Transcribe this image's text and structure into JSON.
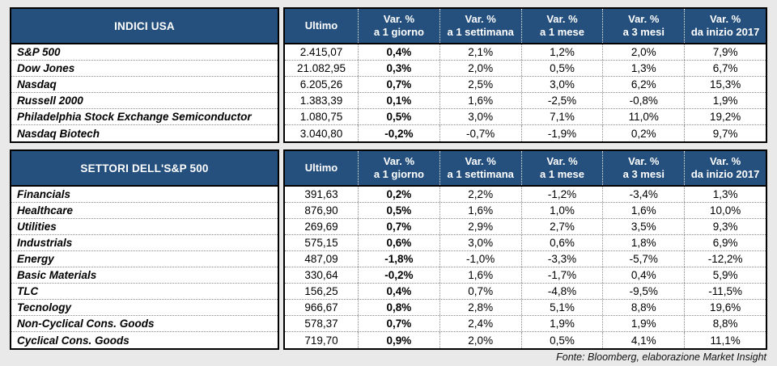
{
  "page": {
    "header_blue": "#25507E",
    "footer_note": "Fonte: Bloomberg, elaborazione Market Insight"
  },
  "columns": [
    {
      "line1": "Ultimo",
      "line2": ""
    },
    {
      "line1": "Var. %",
      "line2": "a 1 giorno"
    },
    {
      "line1": "Var. %",
      "line2": "a 1 settimana"
    },
    {
      "line1": "Var. %",
      "line2": "a 1 mese"
    },
    {
      "line1": "Var. %",
      "line2": "a 3 mesi"
    },
    {
      "line1": "Var. %",
      "line2": "da inizio 2017"
    }
  ],
  "sections": [
    {
      "title": "INDICI USA",
      "rows": [
        {
          "name": "S&P 500",
          "cells": [
            "2.415,07",
            "0,4%",
            "2,1%",
            "1,2%",
            "2,0%",
            "7,9%"
          ]
        },
        {
          "name": "Dow Jones",
          "cells": [
            "21.082,95",
            "0,3%",
            "2,0%",
            "0,5%",
            "1,3%",
            "6,7%"
          ]
        },
        {
          "name": "Nasdaq",
          "cells": [
            "6.205,26",
            "0,7%",
            "2,5%",
            "3,0%",
            "6,2%",
            "15,3%"
          ]
        },
        {
          "name": "Russell 2000",
          "cells": [
            "1.383,39",
            "0,1%",
            "1,6%",
            "-2,5%",
            "-0,8%",
            "1,9%"
          ]
        },
        {
          "name": "Philadelphia Stock Exchange Semiconductor",
          "cells": [
            "1.080,75",
            "0,5%",
            "3,0%",
            "7,1%",
            "11,0%",
            "19,2%"
          ]
        },
        {
          "name": "Nasdaq Biotech",
          "cells": [
            "3.040,80",
            "-0,2%",
            "-0,7%",
            "-1,9%",
            "0,2%",
            "9,7%"
          ]
        }
      ]
    },
    {
      "title": "SETTORI DELL'S&P 500",
      "rows": [
        {
          "name": "Financials",
          "cells": [
            "391,63",
            "0,2%",
            "2,2%",
            "-1,2%",
            "-3,4%",
            "1,3%"
          ]
        },
        {
          "name": "Healthcare",
          "cells": [
            "876,90",
            "0,5%",
            "1,6%",
            "1,0%",
            "1,6%",
            "10,0%"
          ]
        },
        {
          "name": "Utilities",
          "cells": [
            "269,69",
            "0,7%",
            "2,9%",
            "2,7%",
            "3,5%",
            "9,3%"
          ]
        },
        {
          "name": "Industrials",
          "cells": [
            "575,15",
            "0,6%",
            "3,0%",
            "0,6%",
            "1,8%",
            "6,9%"
          ]
        },
        {
          "name": "Energy",
          "cells": [
            "487,09",
            "-1,8%",
            "-1,0%",
            "-3,3%",
            "-5,7%",
            "-12,2%"
          ]
        },
        {
          "name": "Basic Materials",
          "cells": [
            "330,64",
            "-0,2%",
            "1,6%",
            "-1,7%",
            "0,4%",
            "5,9%"
          ]
        },
        {
          "name": "TLC",
          "cells": [
            "156,25",
            "0,4%",
            "0,7%",
            "-4,8%",
            "-9,5%",
            "-11,5%"
          ]
        },
        {
          "name": "Tecnology",
          "cells": [
            "966,67",
            "0,8%",
            "2,8%",
            "5,1%",
            "8,8%",
            "19,6%"
          ]
        },
        {
          "name": "Non-Cyclical Cons. Goods",
          "cells": [
            "578,37",
            "0,7%",
            "2,4%",
            "1,9%",
            "1,9%",
            "8,8%"
          ]
        },
        {
          "name": "Cyclical Cons. Goods",
          "cells": [
            "719,70",
            "0,9%",
            "2,0%",
            "0,5%",
            "4,1%",
            "11,1%"
          ]
        }
      ]
    }
  ]
}
